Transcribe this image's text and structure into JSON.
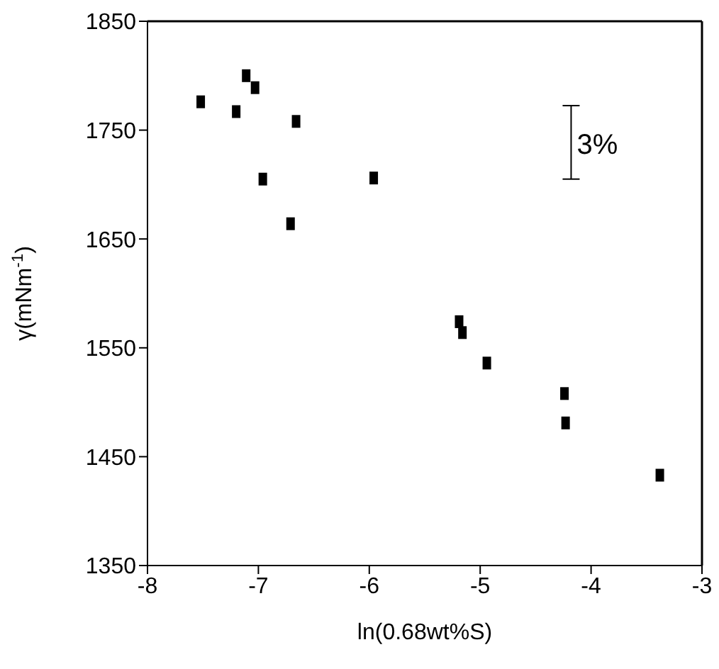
{
  "chart_data": {
    "type": "scatter",
    "xlabel": "ln(0.68wt%S)",
    "ylabel": "γ(mNm$^{-1}$)",
    "annotations": [
      "3%"
    ],
    "x": [
      -7.52,
      -7.2,
      -7.11,
      -7.03,
      -6.66,
      -6.96,
      -6.71,
      -5.96,
      -5.19,
      -5.16,
      -4.94,
      -4.24,
      -4.23,
      -3.38
    ],
    "series": [
      {
        "color": "#000000",
        "values": [
          1776,
          1767,
          1800,
          1789,
          1758,
          1705,
          1664,
          1706,
          1574,
          1564,
          1536,
          1508,
          1481,
          1433
        ]
      }
    ],
    "xlim": [
      -8,
      -3
    ],
    "xticks": [
      -8,
      -7,
      -6,
      -5,
      -4,
      -3
    ],
    "ylim": [
      1350,
      1850
    ],
    "yticks": [
      1350,
      1450,
      1550,
      1650,
      1750,
      1850
    ],
    "grid": false,
    "marker": "square"
  }
}
